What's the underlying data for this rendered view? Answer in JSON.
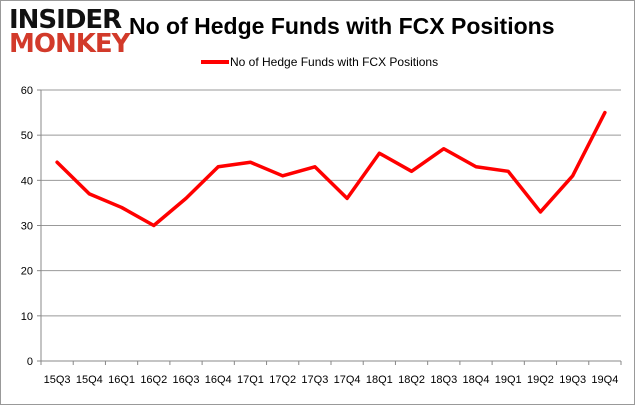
{
  "logo": {
    "line1": "INSIDER",
    "line2": "MONKEY"
  },
  "chart_data": {
    "type": "line",
    "title": "No of Hedge Funds with FCX Positions",
    "categories": [
      "15Q3",
      "15Q4",
      "16Q1",
      "16Q2",
      "16Q3",
      "16Q4",
      "17Q1",
      "17Q2",
      "17Q3",
      "17Q4",
      "18Q1",
      "18Q2",
      "18Q3",
      "18Q4",
      "19Q1",
      "19Q2",
      "19Q3",
      "19Q4"
    ],
    "series": [
      {
        "name": "No of Hedge Funds with FCX Positions",
        "values": [
          44,
          37,
          34,
          30,
          36,
          43,
          44,
          41,
          43,
          36,
          46,
          42,
          47,
          43,
          42,
          33,
          41,
          55
        ],
        "color": "#ff0000"
      }
    ],
    "ylim": [
      0,
      60
    ],
    "yticks": [
      0,
      10,
      20,
      30,
      40,
      50,
      60
    ],
    "grid": true,
    "legend": "top"
  }
}
